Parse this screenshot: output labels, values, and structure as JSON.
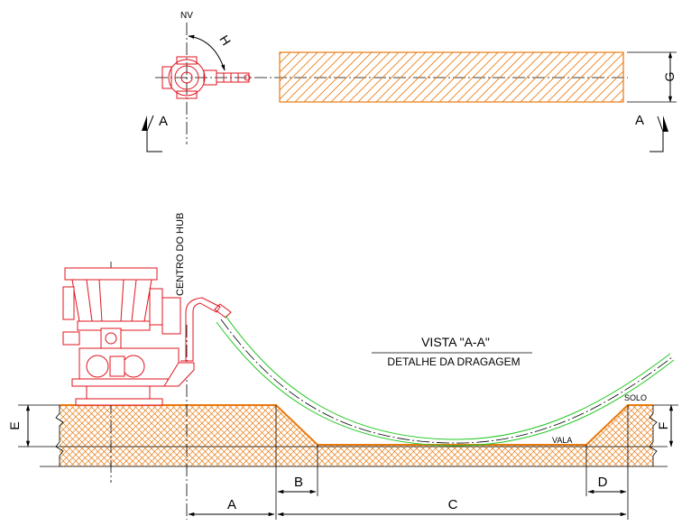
{
  "labels": {
    "north": "NV",
    "angle": "H",
    "section_left": "A",
    "section_right": "A",
    "width": "G",
    "hub_center": "CENTRO DO HUB",
    "view_title": "VISTA \"A-A\"",
    "view_subtitle": "DETALHE DA DRAGAGEM",
    "ground": "SOLO",
    "trench": "VALA",
    "height_e": "E",
    "height_f": "F",
    "dim_a": "A",
    "dim_b": "B",
    "dim_c": "C",
    "dim_d": "D"
  },
  "colors": {
    "equipment": "#e0141e",
    "hatch": "#e8790f",
    "hose": "#22c722",
    "line": "#000000"
  }
}
